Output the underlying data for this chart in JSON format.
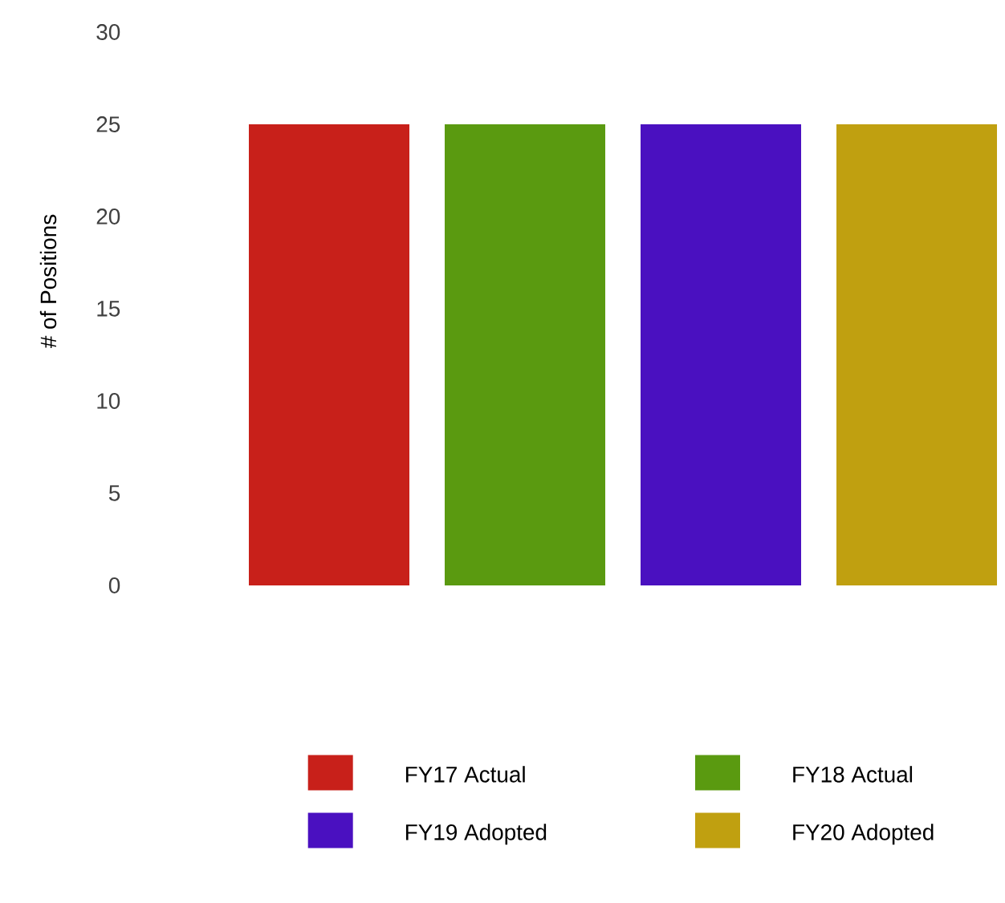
{
  "chart_data": {
    "type": "bar",
    "ylabel": "# of Positions",
    "categories": [
      null
    ],
    "series": [
      {
        "name": "FY17 Actual",
        "color": "#c8201a",
        "values": [
          25
        ]
      },
      {
        "name": "FY18 Actual",
        "color": "#5a9a10",
        "values": [
          25
        ]
      },
      {
        "name": "FY19 Adopted",
        "color": "#4a10c0",
        "values": [
          25
        ]
      },
      {
        "name": "FY20 Adopted",
        "color": "#c0a010",
        "values": [
          25
        ]
      }
    ],
    "ylim": [
      0,
      30
    ],
    "yticks": [
      0,
      5,
      10,
      15,
      20,
      25,
      30
    ],
    "legend": "bottom"
  }
}
